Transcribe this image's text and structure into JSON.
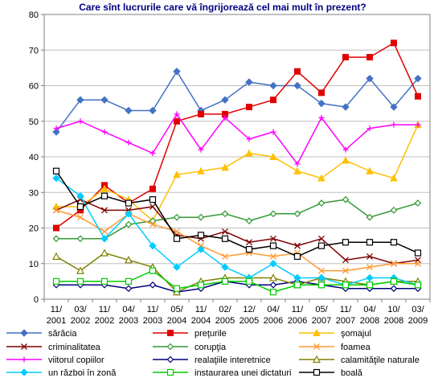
{
  "chart_data": {
    "type": "line",
    "title": "Care sînt lucrurile care vă îngrijorează cel mai mult în prezent?",
    "xlabel": "",
    "ylabel": "",
    "ylim": [
      0,
      80
    ],
    "yticks": [
      "0",
      "10",
      "20",
      "30",
      "40",
      "50",
      "60",
      "70",
      "80"
    ],
    "grid": true,
    "legend_position": "bottom",
    "categories": [
      [
        "11/",
        "2001"
      ],
      [
        "03/",
        "2002"
      ],
      [
        "11/",
        "2002"
      ],
      [
        "04/",
        "2003"
      ],
      [
        "11/",
        "2003"
      ],
      [
        "05/",
        "2004"
      ],
      [
        "11/",
        "2004"
      ],
      [
        "02/",
        "2005"
      ],
      [
        "12/",
        "2005"
      ],
      [
        "04/",
        "2006"
      ],
      [
        "11/",
        "2006"
      ],
      [
        "05/",
        "2007"
      ],
      [
        "11/",
        "2007"
      ],
      [
        "04/",
        "2008"
      ],
      [
        "10/",
        "2008"
      ],
      [
        "03/",
        "2009"
      ]
    ],
    "series": [
      {
        "name": "sărăcia",
        "color": "#4472C4",
        "marker": "diamond",
        "values": [
          47,
          56,
          56,
          53,
          53,
          64,
          53,
          56,
          61,
          60,
          60,
          55,
          54,
          62,
          54,
          62
        ]
      },
      {
        "name": "preţurile",
        "color": "#E00000",
        "marker": "square-filled",
        "values": [
          20,
          25,
          32,
          27,
          31,
          50,
          52,
          52,
          54,
          56,
          64,
          58,
          68,
          68,
          72,
          57
        ]
      },
      {
        "name": "şomajul",
        "color": "#FFC000",
        "marker": "triangle",
        "values": [
          26,
          26,
          31,
          28,
          22,
          35,
          36,
          37,
          41,
          40,
          36,
          34,
          39,
          36,
          34,
          49
        ]
      },
      {
        "name": "criminalitatea",
        "color": "#800000",
        "marker": "x",
        "values": [
          25,
          28,
          25,
          25,
          26,
          18,
          17,
          19,
          16,
          17,
          15,
          17,
          11,
          12,
          10,
          11
        ]
      },
      {
        "name": "corupţia",
        "color": "#339933",
        "marker": "diamond-open",
        "values": [
          17,
          17,
          17,
          21,
          22,
          23,
          23,
          24,
          22,
          24,
          24,
          27,
          28,
          23,
          25,
          27
        ]
      },
      {
        "name": "foamea",
        "color": "#FF9933",
        "marker": "x",
        "values": [
          25,
          23,
          19,
          24,
          21,
          19,
          15,
          12,
          13,
          12,
          13,
          8,
          8,
          9,
          10,
          10
        ]
      },
      {
        "name": "viitorul copiilor",
        "color": "#FF00FF",
        "marker": "plus",
        "values": [
          48,
          50,
          47,
          44,
          41,
          52,
          42,
          51,
          45,
          47,
          38,
          51,
          42,
          48,
          49,
          49
        ]
      },
      {
        "name": "realaţiile interetnice",
        "color": "#000080",
        "marker": "diamond-open",
        "values": [
          4,
          4,
          4,
          3,
          4,
          2,
          3,
          5,
          4,
          4,
          5,
          4,
          3,
          3,
          3,
          3
        ]
      },
      {
        "name": "calamităţile naturale",
        "color": "#808000",
        "marker": "triangle-open",
        "values": [
          12,
          8,
          13,
          11,
          9,
          2,
          5,
          6,
          6,
          6,
          4,
          6,
          5,
          4,
          5,
          5
        ]
      },
      {
        "name": "un război în zonă",
        "color": "#00CCFF",
        "marker": "diamond",
        "values": [
          34,
          29,
          17,
          24,
          15,
          9,
          14,
          9,
          6,
          10,
          6,
          6,
          4,
          6,
          6,
          4
        ]
      },
      {
        "name": "instaurarea unei dictaturi",
        "color": "#00CC00",
        "marker": "square-open",
        "values": [
          5,
          5,
          5,
          5,
          8,
          3,
          4,
          5,
          5,
          2,
          4,
          4,
          4,
          4,
          5,
          4
        ]
      },
      {
        "name": "boală",
        "color": "#000000",
        "marker": "square-open",
        "values": [
          36,
          26,
          29,
          27,
          28,
          17,
          18,
          17,
          14,
          15,
          12,
          15,
          16,
          16,
          16,
          13
        ]
      }
    ]
  }
}
